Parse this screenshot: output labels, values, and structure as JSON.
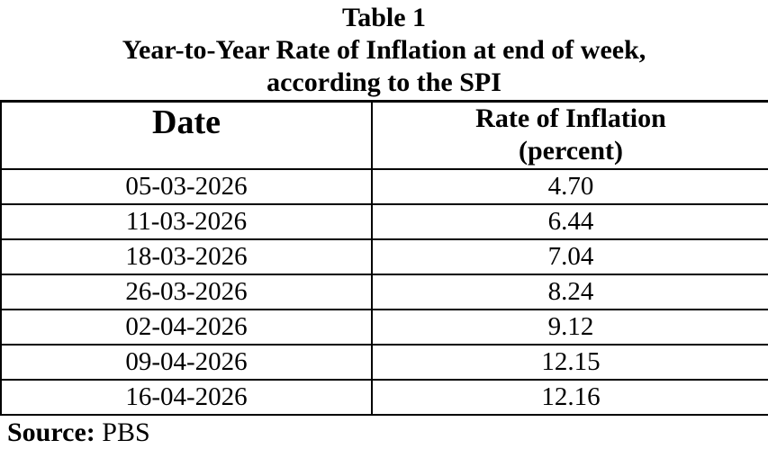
{
  "title": {
    "line1": "Table 1",
    "line2": "Year-to-Year Rate of Inflation at end of week,",
    "line3": "according to the SPI"
  },
  "table": {
    "headers": {
      "date": "Date",
      "rate_line1": "Rate of Inflation",
      "rate_line2": "(percent)"
    },
    "rows": [
      {
        "date": "05-03-2026",
        "rate": "4.70"
      },
      {
        "date": "11-03-2026",
        "rate": "6.44"
      },
      {
        "date": "18-03-2026",
        "rate": "7.04"
      },
      {
        "date": "26-03-2026",
        "rate": "8.24"
      },
      {
        "date": "02-04-2026",
        "rate": "9.12"
      },
      {
        "date": "09-04-2026",
        "rate": "12.15"
      },
      {
        "date": "16-04-2026",
        "rate": "12.16"
      }
    ]
  },
  "footer": {
    "source_label": "Source:",
    "source_value": "PBS"
  },
  "colors": {
    "background": "#ffffff",
    "text": "#000000",
    "border": "#000000"
  }
}
